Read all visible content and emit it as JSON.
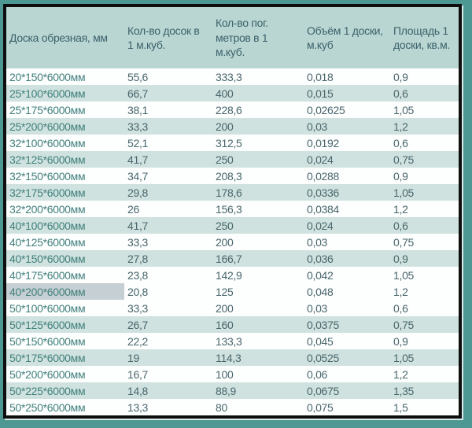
{
  "chart_data": {
    "type": "table",
    "title": "",
    "columns": [
      "Доска обрезная,  мм",
      "Кол-во досок в 1 м.куб.",
      "Кол-во пог. метров в 1 м.куб.",
      "Объём 1 доски, м.куб",
      "Площадь 1 доски, кв.м."
    ],
    "rows": [
      [
        "20*150*6000мм",
        "55,6",
        "333,3",
        "0,018",
        "0,9"
      ],
      [
        "25*100*6000мм",
        "66,7",
        "400",
        "0,015",
        "0,6"
      ],
      [
        "25*175*6000мм",
        "38,1",
        "228,6",
        "0,02625",
        "1,05"
      ],
      [
        "25*200*6000мм",
        "33,3",
        "200",
        "0,03",
        "1,2"
      ],
      [
        "32*100*6000мм",
        "52,1",
        "312,5",
        "0,0192",
        "0,6"
      ],
      [
        "32*125*6000мм",
        "41,7",
        "250",
        "0,024",
        "0,75"
      ],
      [
        "32*150*6000мм",
        "34,7",
        "208,3",
        "0,0288",
        "0,9"
      ],
      [
        "32*175*6000мм",
        "29,8",
        "178,6",
        "0,0336",
        "1,05"
      ],
      [
        "32*200*6000мм",
        "26",
        "156,3",
        "0,0384",
        "1,2"
      ],
      [
        "40*100*6000мм",
        "41,7",
        "250",
        "0,024",
        "0,6"
      ],
      [
        "40*125*6000мм",
        "33,3",
        "200",
        "0,03",
        "0,75"
      ],
      [
        "40*150*6000мм",
        "27,8",
        "166,7",
        "0,036",
        "0,9"
      ],
      [
        "40*175*6000мм",
        "23,8",
        "142,9",
        "0,042",
        "1,05"
      ],
      [
        "40*200*6000мм",
        "20,8",
        "125",
        "0,048",
        "1,2"
      ],
      [
        "50*100*6000мм",
        "33,3",
        "200",
        "0,03",
        "0,6"
      ],
      [
        "50*125*6000мм",
        "26,7",
        "160",
        "0,0375",
        "0,75"
      ],
      [
        "50*150*6000мм",
        "22,2",
        "133,3",
        "0,045",
        "0,9"
      ],
      [
        "50*175*6000мм",
        "19",
        "114,3",
        "0,0525",
        "1,05"
      ],
      [
        "50*200*6000мм",
        "16,7",
        "100",
        "0,06",
        "1,2"
      ],
      [
        "50*225*6000мм",
        "14,8",
        "88,9",
        "0,0675",
        "1,35"
      ],
      [
        "50*250*6000мм",
        "13,3",
        "80",
        "0,075",
        "1,5"
      ]
    ]
  },
  "presentation": {
    "striped_rows": [
      1,
      3,
      5,
      7,
      9,
      11,
      15,
      17,
      19
    ],
    "highlight": {
      "row": 13,
      "col": 0
    }
  },
  "colors": {
    "frame": "#4e9894",
    "border": "#0e0e0e",
    "header_bg": "#b9d6d2",
    "stripe_bg": "#cfe2df",
    "row_bg": "#fdfefe",
    "dimension_text": "#41807c",
    "number_text": "#49666c",
    "header_text": "#3c616b",
    "highlight_bg": "#c6cfd3",
    "edge_light": "#d9e9e7"
  }
}
